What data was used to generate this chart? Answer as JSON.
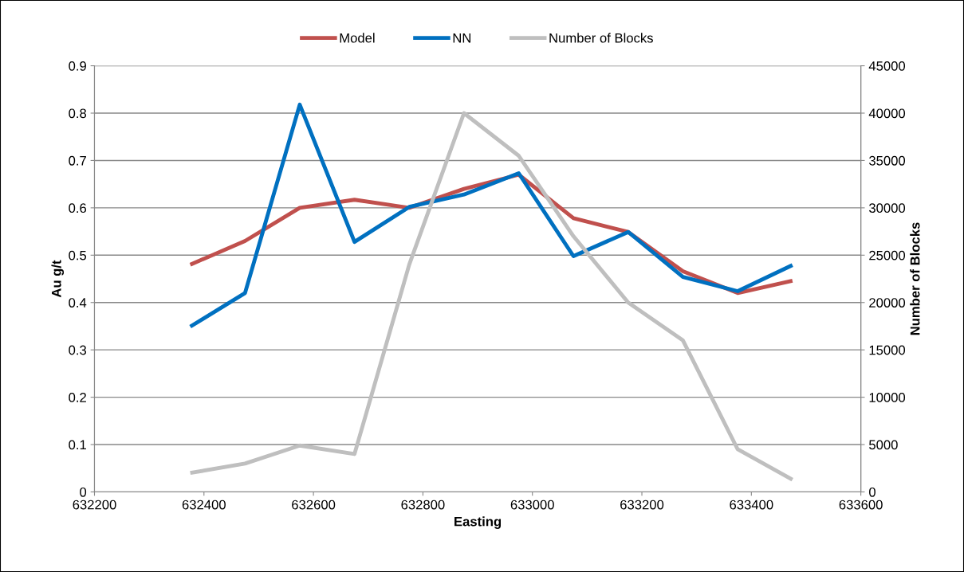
{
  "chart_data": {
    "type": "line",
    "xlabel": "Easting",
    "ylabel": "Au g/t",
    "y2label": "Number of Blocks",
    "x": [
      632375,
      632475,
      632575,
      632675,
      632775,
      632875,
      632975,
      633075,
      633175,
      633275,
      633375,
      633475
    ],
    "series": [
      {
        "name": "Model",
        "color": "#c0504d",
        "values": [
          0.48,
          0.53,
          0.6,
          0.617,
          0.6,
          0.64,
          0.67,
          0.578,
          0.549,
          0.466,
          0.42,
          0.446
        ]
      },
      {
        "name": "NN",
        "color": "#0070c0",
        "values": [
          0.349,
          0.42,
          0.818,
          0.528,
          0.602,
          0.628,
          0.673,
          0.498,
          0.549,
          0.454,
          0.424,
          0.479
        ]
      },
      {
        "name": "Number of Blocks",
        "color": "#bfbfbf",
        "axis": "y2",
        "values": [
          2000,
          3000,
          4900,
          4000,
          24000,
          40000,
          35500,
          27000,
          20000,
          16000,
          4500,
          1300
        ]
      }
    ],
    "xlim": [
      632200,
      633600
    ],
    "xticks": [
      632200,
      632400,
      632600,
      632800,
      633000,
      633200,
      633400,
      633600
    ],
    "ylim": [
      0,
      0.9
    ],
    "yticks": [
      0,
      0.1,
      0.2,
      0.3,
      0.4,
      0.5,
      0.6,
      0.7,
      0.8,
      0.9
    ],
    "y2lim": [
      0,
      45000
    ],
    "y2ticks": [
      0,
      5000,
      10000,
      15000,
      20000,
      25000,
      30000,
      35000,
      40000,
      45000
    ],
    "grid": "y",
    "legend": "top",
    "marker": "none",
    "line_style": "solid"
  }
}
